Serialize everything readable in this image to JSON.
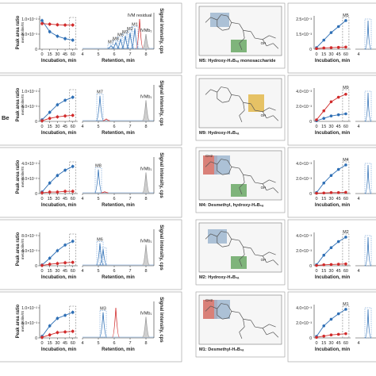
{
  "panels": [
    {
      "panel_label": "",
      "label": ""
    },
    {
      "panel_label": "Be",
      "label": ""
    },
    {
      "panel_label": "",
      "label": ""
    },
    {
      "panel_label": "",
      "label": ""
    },
    {
      "panel_label": "",
      "label": ""
    }
  ],
  "structures": [
    {
      "label": "M5: Hydroxy-H₂B₁ₐ monosaccharide",
      "oh": "OH",
      "ch2": ""
    },
    {
      "label": "M9: Hydroxy-H₂B₁ₐ",
      "oh": "OH",
      "ch2": ""
    },
    {
      "label": "M4: Desmethyl, hydroxy-H₂B₁ₐ",
      "oh": "OH",
      "ch2": "CH2"
    },
    {
      "label": "M2: Hydroxy-H₂B₁ₐ",
      "oh": "OH",
      "ch2": ""
    },
    {
      "label": "M1: Desmethyl-H₂B₁ₐ",
      "oh": "",
      "ch2": "CH2"
    }
  ],
  "axes": {
    "incubation_label": "Incubation, min",
    "retention_label": "Retention, min",
    "peak_area_label": "Peak area ratio",
    "peak_area_sub": "metabolite/IS",
    "signal_label": "Signal intensity, cps"
  },
  "colors": {
    "blue": "#2e6fb5",
    "red": "#d12b2b",
    "dashed": "#3b7cc4",
    "grey": "#9a9a9a"
  },
  "chart_data": [
    {
      "type": "line",
      "incubation": {
        "x": [
          0,
          15,
          30,
          45,
          60
        ],
        "xticks": [
          "0",
          "15",
          "30",
          "45",
          "60"
        ],
        "yticks": [
          "0",
          "5.0×10⁻³",
          "1.0×10⁻²"
        ],
        "ylim": [
          0,
          0.01
        ],
        "series": [
          {
            "values": [
              0.0095,
              0.0058,
              0.0043,
              0.0035,
              0.003
            ],
            "color": "#2e6fb5"
          },
          {
            "values": [
              0.0085,
              0.0083,
              0.0081,
              0.008,
              0.008
            ],
            "color": "#d12b2b"
          }
        ]
      },
      "chromatogram": {
        "xticks": [
          "4",
          "5",
          "6",
          "7",
          "8"
        ],
        "xlim": [
          4,
          8.5
        ],
        "peaks": [
          {
            "name": "M7",
            "rt": 5.8,
            "h": 0.12,
            "color": "#2e6fb5"
          },
          {
            "name": "M8",
            "rt": 6.1,
            "h": 0.22,
            "color": "#2e6fb5"
          },
          {
            "name": "M6",
            "rt": 6.4,
            "h": 0.35,
            "color": "#2e6fb5"
          },
          {
            "name": "M3",
            "rt": 6.7,
            "h": 0.45,
            "color": "#2e6fb5"
          },
          {
            "name": "M2",
            "rt": 7.0,
            "h": 0.55,
            "color": "#2e6fb5"
          },
          {
            "name": "M1",
            "rt": 7.3,
            "h": 0.7,
            "color": "#2e6fb5"
          },
          {
            "name": "IVM residual",
            "rt": 7.6,
            "h": 1.0,
            "color": "#d12b2b"
          },
          {
            "name": "IVMb₁",
            "rt": 8.0,
            "h": 0.5,
            "color": "#9a9a9a"
          }
        ]
      }
    },
    {
      "type": "line",
      "incubation": {
        "x": [
          0,
          15,
          30,
          45,
          60
        ],
        "xticks": [
          "0",
          "15",
          "30",
          "45",
          "60"
        ],
        "yticks": [
          "0",
          "5.0×10⁻³",
          "1.0×10⁻²"
        ],
        "ylim": [
          0,
          0.01
        ],
        "series": [
          {
            "values": [
              0.0005,
              0.003,
              0.0055,
              0.007,
              0.008
            ],
            "color": "#2e6fb5"
          },
          {
            "values": [
              0.0002,
              0.001,
              0.0015,
              0.0018,
              0.002
            ],
            "color": "#d12b2b"
          }
        ]
      },
      "chromatogram": {
        "xticks": [
          "4",
          "5",
          "6",
          "7",
          "8"
        ],
        "xlim": [
          4,
          8.5
        ],
        "peaks": [
          {
            "name": "M7",
            "rt": 5.1,
            "h": 0.85,
            "color": "#2e6fb5"
          },
          {
            "name": "",
            "rt": 5.5,
            "h": 0.08,
            "color": "#d12b2b"
          },
          {
            "name": "IVMb₁",
            "rt": 8.0,
            "h": 0.7,
            "color": "#9a9a9a"
          }
        ]
      }
    },
    {
      "type": "line",
      "incubation": {
        "x": [
          0,
          15,
          30,
          45,
          60
        ],
        "xticks": [
          "0",
          "15",
          "30",
          "45",
          "60"
        ],
        "yticks": [
          "0",
          "2.0×10⁻²",
          "4.0×10⁻²"
        ],
        "ylim": [
          0,
          0.04
        ],
        "series": [
          {
            "values": [
              0.002,
              0.014,
              0.024,
              0.031,
              0.036
            ],
            "color": "#2e6fb5"
          },
          {
            "values": [
              0.001,
              0.002,
              0.002,
              0.003,
              0.003
            ],
            "color": "#d12b2b"
          }
        ]
      },
      "chromatogram": {
        "xticks": [
          "4",
          "5",
          "6",
          "7",
          "8"
        ],
        "xlim": [
          4,
          8.5
        ],
        "peaks": [
          {
            "name": "M8",
            "rt": 5.0,
            "h": 0.8,
            "color": "#2e6fb5"
          },
          {
            "name": "",
            "rt": 5.4,
            "h": 0.06,
            "color": "#d12b2b"
          },
          {
            "name": "IVMb₁",
            "rt": 8.0,
            "h": 0.7,
            "color": "#9a9a9a"
          }
        ]
      }
    },
    {
      "type": "line",
      "incubation": {
        "x": [
          0,
          15,
          30,
          45,
          60
        ],
        "xticks": [
          "0",
          "15",
          "30",
          "45",
          "60"
        ],
        "yticks": [
          "0",
          "4.0×10⁻³",
          "8.0×10⁻³"
        ],
        "ylim": [
          0,
          0.008
        ],
        "series": [
          {
            "values": [
              0.0002,
              0.002,
              0.004,
              0.0055,
              0.0065
            ],
            "color": "#2e6fb5"
          },
          {
            "values": [
              0.0001,
              0.0004,
              0.0006,
              0.0008,
              0.0009
            ],
            "color": "#d12b2b"
          }
        ]
      },
      "chromatogram": {
        "xticks": [
          "4",
          "5",
          "6",
          "7",
          "8"
        ],
        "xlim": [
          4,
          8.5
        ],
        "peaks": [
          {
            "name": "M6",
            "rt": 5.1,
            "h": 0.75,
            "color": "#2e6fb5"
          },
          {
            "name": "",
            "rt": 5.3,
            "h": 0.55,
            "color": "#2e6fb5"
          },
          {
            "name": "IVMb₁",
            "rt": 8.0,
            "h": 0.7,
            "color": "#9a9a9a"
          }
        ]
      }
    },
    {
      "type": "line",
      "incubation": {
        "x": [
          0,
          15,
          30,
          45,
          60
        ],
        "xticks": [
          "0",
          "15",
          "30",
          "45",
          "60"
        ],
        "yticks": [
          "0",
          "5.0×10⁻³",
          "1.0×10⁻²"
        ],
        "ylim": [
          0,
          0.01
        ],
        "series": [
          {
            "values": [
              0.0005,
              0.004,
              0.0065,
              0.0075,
              0.0085
            ],
            "color": "#2e6fb5"
          },
          {
            "values": [
              0.0002,
              0.001,
              0.0018,
              0.002,
              0.0022
            ],
            "color": "#d12b2b"
          }
        ]
      },
      "chromatogram": {
        "xticks": [
          "4",
          "5",
          "6",
          "7",
          "8"
        ],
        "xlim": [
          4,
          8.5
        ],
        "peaks": [
          {
            "name": "M3",
            "rt": 5.3,
            "h": 0.85,
            "color": "#2e6fb5"
          },
          {
            "name": "",
            "rt": 6.1,
            "h": 1.0,
            "color": "#d12b2b"
          },
          {
            "name": "IVMb₁",
            "rt": 8.0,
            "h": 0.7,
            "color": "#9a9a9a"
          }
        ]
      }
    }
  ],
  "right_column": [
    {
      "yticks": [
        "0",
        "1.5×10⁻³",
        "2.5×10⁻³"
      ],
      "peak_label": "M5",
      "blue": [
        0.05,
        0.3,
        0.55,
        0.75,
        0.95
      ],
      "red": [
        0.02,
        0.04,
        0.05,
        0.06,
        0.07
      ]
    },
    {
      "yticks": [
        "0",
        "2.0×10⁻³",
        "4.0×10⁻³"
      ],
      "peak_label": "M9",
      "blue": [
        0.02,
        0.1,
        0.18,
        0.22,
        0.25
      ],
      "red": [
        0.05,
        0.35,
        0.65,
        0.8,
        0.9
      ]
    },
    {
      "yticks": [
        "0",
        "2.0×10⁻³",
        "4.0×10⁻³"
      ],
      "peak_label": "M4",
      "blue": [
        0.03,
        0.35,
        0.6,
        0.8,
        0.95
      ],
      "red": [
        0.01,
        0.02,
        0.03,
        0.03,
        0.04
      ]
    },
    {
      "yticks": [
        "0",
        "2.0×10⁻³",
        "4.0×10⁻³"
      ],
      "peak_label": "M2",
      "blue": [
        0.03,
        0.35,
        0.6,
        0.8,
        0.95
      ],
      "red": [
        0.01,
        0.03,
        0.04,
        0.05,
        0.06
      ]
    },
    {
      "yticks": [
        "0",
        "2.0×10⁻³",
        "4.0×10⁻³"
      ],
      "peak_label": "M1",
      "blue": [
        0.05,
        0.4,
        0.62,
        0.8,
        0.95
      ],
      "red": [
        0.02,
        0.06,
        0.1,
        0.12,
        0.14
      ]
    }
  ]
}
